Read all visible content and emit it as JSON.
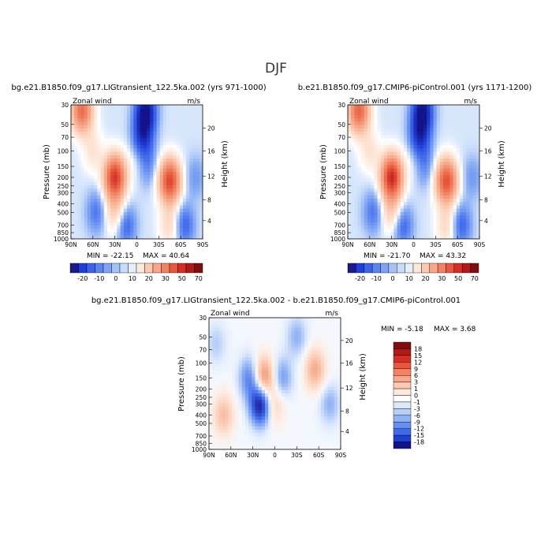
{
  "page_title": "DJF",
  "chart_data": [
    {
      "type": "heatmap",
      "title": "bg.e21.B1850.f09_g17.LIGtransient_122.5ka.002 (yrs 971-1000)",
      "variable": "Zonal wind",
      "units": "m/s",
      "xlabel": "",
      "ylabel": "Pressure (mb)",
      "ylabel_right": "Height (km)",
      "x_ticks": [
        "90N",
        "60N",
        "30N",
        "0",
        "30S",
        "60S",
        "90S"
      ],
      "y_ticks": [
        "30",
        "50",
        "70",
        "100",
        "150",
        "200",
        "250",
        "300",
        "400",
        "500",
        "700",
        "850",
        "1000"
      ],
      "height_ticks": [
        "20",
        "16",
        "12",
        "8",
        "4"
      ],
      "y_scale": "log",
      "ylim": [
        1000,
        30
      ],
      "xlim": [
        90,
        -90
      ],
      "min_label": "MIN = -22.15",
      "max_label": "MAX = 40.64",
      "min": -22.15,
      "max": 40.64,
      "features": [
        {
          "lat": 75,
          "p": 35,
          "value": 30
        },
        {
          "lat": 60,
          "p": 100,
          "value": 6
        },
        {
          "lat": 30,
          "p": 200,
          "value": 40.64
        },
        {
          "lat": 30,
          "p": 500,
          "value": 10
        },
        {
          "lat": 0,
          "p": 120,
          "value": 3
        },
        {
          "lat": -12,
          "p": 35,
          "value": -22.15
        },
        {
          "lat": -8,
          "p": 70,
          "value": -16
        },
        {
          "lat": -15,
          "p": 150,
          "value": -6
        },
        {
          "lat": -45,
          "p": 220,
          "value": 38
        },
        {
          "lat": -45,
          "p": 700,
          "value": 8
        },
        {
          "lat": 55,
          "p": 500,
          "value": -8
        },
        {
          "lat": -65,
          "p": 700,
          "value": -10
        },
        {
          "lat": 15,
          "p": 700,
          "value": -10
        },
        {
          "lat": -80,
          "p": 200,
          "value": -5
        }
      ]
    },
    {
      "type": "heatmap",
      "title": "b.e21.B1850.f09_g17.CMIP6-piControl.001 (yrs 1171-1200)",
      "variable": "Zonal wind",
      "units": "m/s",
      "xlabel": "",
      "ylabel": "Pressure (mb)",
      "ylabel_right": "Height (km)",
      "x_ticks": [
        "90N",
        "60N",
        "30N",
        "0",
        "30S",
        "60S",
        "90S"
      ],
      "y_ticks": [
        "30",
        "50",
        "70",
        "100",
        "150",
        "200",
        "250",
        "300",
        "400",
        "500",
        "700",
        "850",
        "1000"
      ],
      "height_ticks": [
        "20",
        "16",
        "12",
        "8",
        "4"
      ],
      "y_scale": "log",
      "ylim": [
        1000,
        30
      ],
      "xlim": [
        90,
        -90
      ],
      "min_label": "MIN = -21.70",
      "max_label": "MAX = 43.32",
      "min": -21.7,
      "max": 43.32,
      "features": [
        {
          "lat": 75,
          "p": 35,
          "value": 32
        },
        {
          "lat": 60,
          "p": 100,
          "value": 6
        },
        {
          "lat": 30,
          "p": 200,
          "value": 43.32
        },
        {
          "lat": 30,
          "p": 500,
          "value": 10
        },
        {
          "lat": 0,
          "p": 120,
          "value": 3
        },
        {
          "lat": -12,
          "p": 35,
          "value": -21.7
        },
        {
          "lat": -8,
          "p": 70,
          "value": -16
        },
        {
          "lat": -15,
          "p": 150,
          "value": -6
        },
        {
          "lat": -45,
          "p": 220,
          "value": 36
        },
        {
          "lat": -45,
          "p": 700,
          "value": 8
        },
        {
          "lat": 55,
          "p": 500,
          "value": -8
        },
        {
          "lat": -65,
          "p": 700,
          "value": -10
        },
        {
          "lat": 15,
          "p": 700,
          "value": -10
        },
        {
          "lat": -80,
          "p": 200,
          "value": -5
        }
      ]
    },
    {
      "type": "heatmap",
      "title": "bg.e21.B1850.f09_g17.LIGtransient_122.5ka.002 - b.e21.B1850.f09_g17.CMIP6-piControl.001",
      "variable": "Zonal wind",
      "units": "m/s",
      "xlabel": "",
      "ylabel": "Pressure (mb)",
      "ylabel_right": "Height (km)",
      "x_ticks": [
        "90N",
        "60N",
        "30N",
        "0",
        "30S",
        "60S",
        "90S"
      ],
      "y_ticks": [
        "30",
        "50",
        "70",
        "100",
        "150",
        "200",
        "250",
        "300",
        "400",
        "500",
        "700",
        "850",
        "1000"
      ],
      "height_ticks": [
        "20",
        "16",
        "12",
        "8",
        "4"
      ],
      "y_scale": "log",
      "ylim": [
        1000,
        30
      ],
      "xlim": [
        90,
        -90
      ],
      "min_label": "MIN = -5.18",
      "max_label": "MAX = 3.68",
      "min": -5.18,
      "max": 3.68,
      "features": [
        {
          "lat": 70,
          "p": 400,
          "value": 2
        },
        {
          "lat": 15,
          "p": 150,
          "value": 3.68
        },
        {
          "lat": 20,
          "p": 300,
          "value": -5.18
        },
        {
          "lat": 35,
          "p": 150,
          "value": -2.5
        },
        {
          "lat": 0,
          "p": 300,
          "value": 1.5
        },
        {
          "lat": -10,
          "p": 150,
          "value": -2
        },
        {
          "lat": -55,
          "p": 120,
          "value": 2.5
        },
        {
          "lat": -30,
          "p": 50,
          "value": -1.5
        },
        {
          "lat": -75,
          "p": 300,
          "value": -1.5
        },
        {
          "lat": 80,
          "p": 60,
          "value": -1
        }
      ]
    }
  ],
  "colorbars": [
    {
      "labels": [
        "-20",
        "-10",
        "0",
        "10",
        "20",
        "30",
        "50",
        "70"
      ],
      "colors": [
        "#1a1a8c",
        "#1f3fd9",
        "#3b64ec",
        "#5b85f0",
        "#7fa3f3",
        "#a5c2f6",
        "#c8dbf9",
        "#e4eefc",
        "#fde8dc",
        "#fbc8b0",
        "#f8a788",
        "#f38262",
        "#ea573e",
        "#d62e22",
        "#b01a18",
        "#800e0e"
      ]
    },
    {
      "labels": [
        "-20",
        "-10",
        "0",
        "10",
        "20",
        "30",
        "50",
        "70"
      ],
      "colors": [
        "#1a1a8c",
        "#1f3fd9",
        "#3b64ec",
        "#5b85f0",
        "#7fa3f3",
        "#a5c2f6",
        "#c8dbf9",
        "#e4eefc",
        "#fde8dc",
        "#fbc8b0",
        "#f8a788",
        "#f38262",
        "#ea573e",
        "#d62e22",
        "#b01a18",
        "#800e0e"
      ]
    },
    {
      "labels": [
        "18",
        "15",
        "12",
        "9",
        "6",
        "3",
        "1",
        "0",
        "-1",
        "-3",
        "-6",
        "-9",
        "-12",
        "-15",
        "-18"
      ],
      "colors": [
        "#800e0e",
        "#b01a18",
        "#d62e22",
        "#ea573e",
        "#f38262",
        "#f8a788",
        "#fbc8b0",
        "#fde8dc",
        "#ffffff",
        "#dbe8fb",
        "#b8d0f8",
        "#8fb2f4",
        "#6690f0",
        "#3f6aeb",
        "#2040d4",
        "#12128a"
      ]
    }
  ]
}
